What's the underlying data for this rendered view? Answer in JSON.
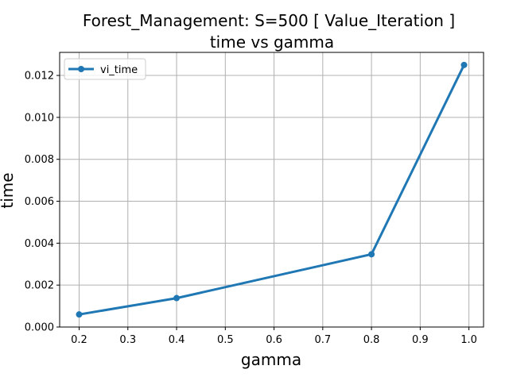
{
  "chart_data": {
    "type": "line",
    "title": "Forest_Management: S=500 [ Value_Iteration ]",
    "subtitle": "time vs gamma",
    "xlabel": "gamma",
    "ylabel": "time",
    "xlim": [
      0.16,
      1.03
    ],
    "ylim": [
      0.0,
      0.0131
    ],
    "xticks": [
      0.2,
      0.3,
      0.4,
      0.5,
      0.6,
      0.7,
      0.8,
      0.9,
      1.0
    ],
    "xtick_labels": [
      "0.2",
      "0.3",
      "0.4",
      "0.5",
      "0.6",
      "0.7",
      "0.8",
      "0.9",
      "1.0"
    ],
    "yticks": [
      0.0,
      0.002,
      0.004,
      0.006,
      0.008,
      0.01,
      0.012
    ],
    "ytick_labels": [
      "0.000",
      "0.002",
      "0.004",
      "0.006",
      "0.008",
      "0.010",
      "0.012"
    ],
    "grid": true,
    "legend_position": "top-left",
    "series": [
      {
        "name": "vi_time",
        "color": "#1f77b4",
        "marker": "circle",
        "x": [
          0.2,
          0.4,
          0.8,
          0.99
        ],
        "y": [
          0.0006,
          0.00138,
          0.00347,
          0.0125
        ]
      }
    ]
  }
}
